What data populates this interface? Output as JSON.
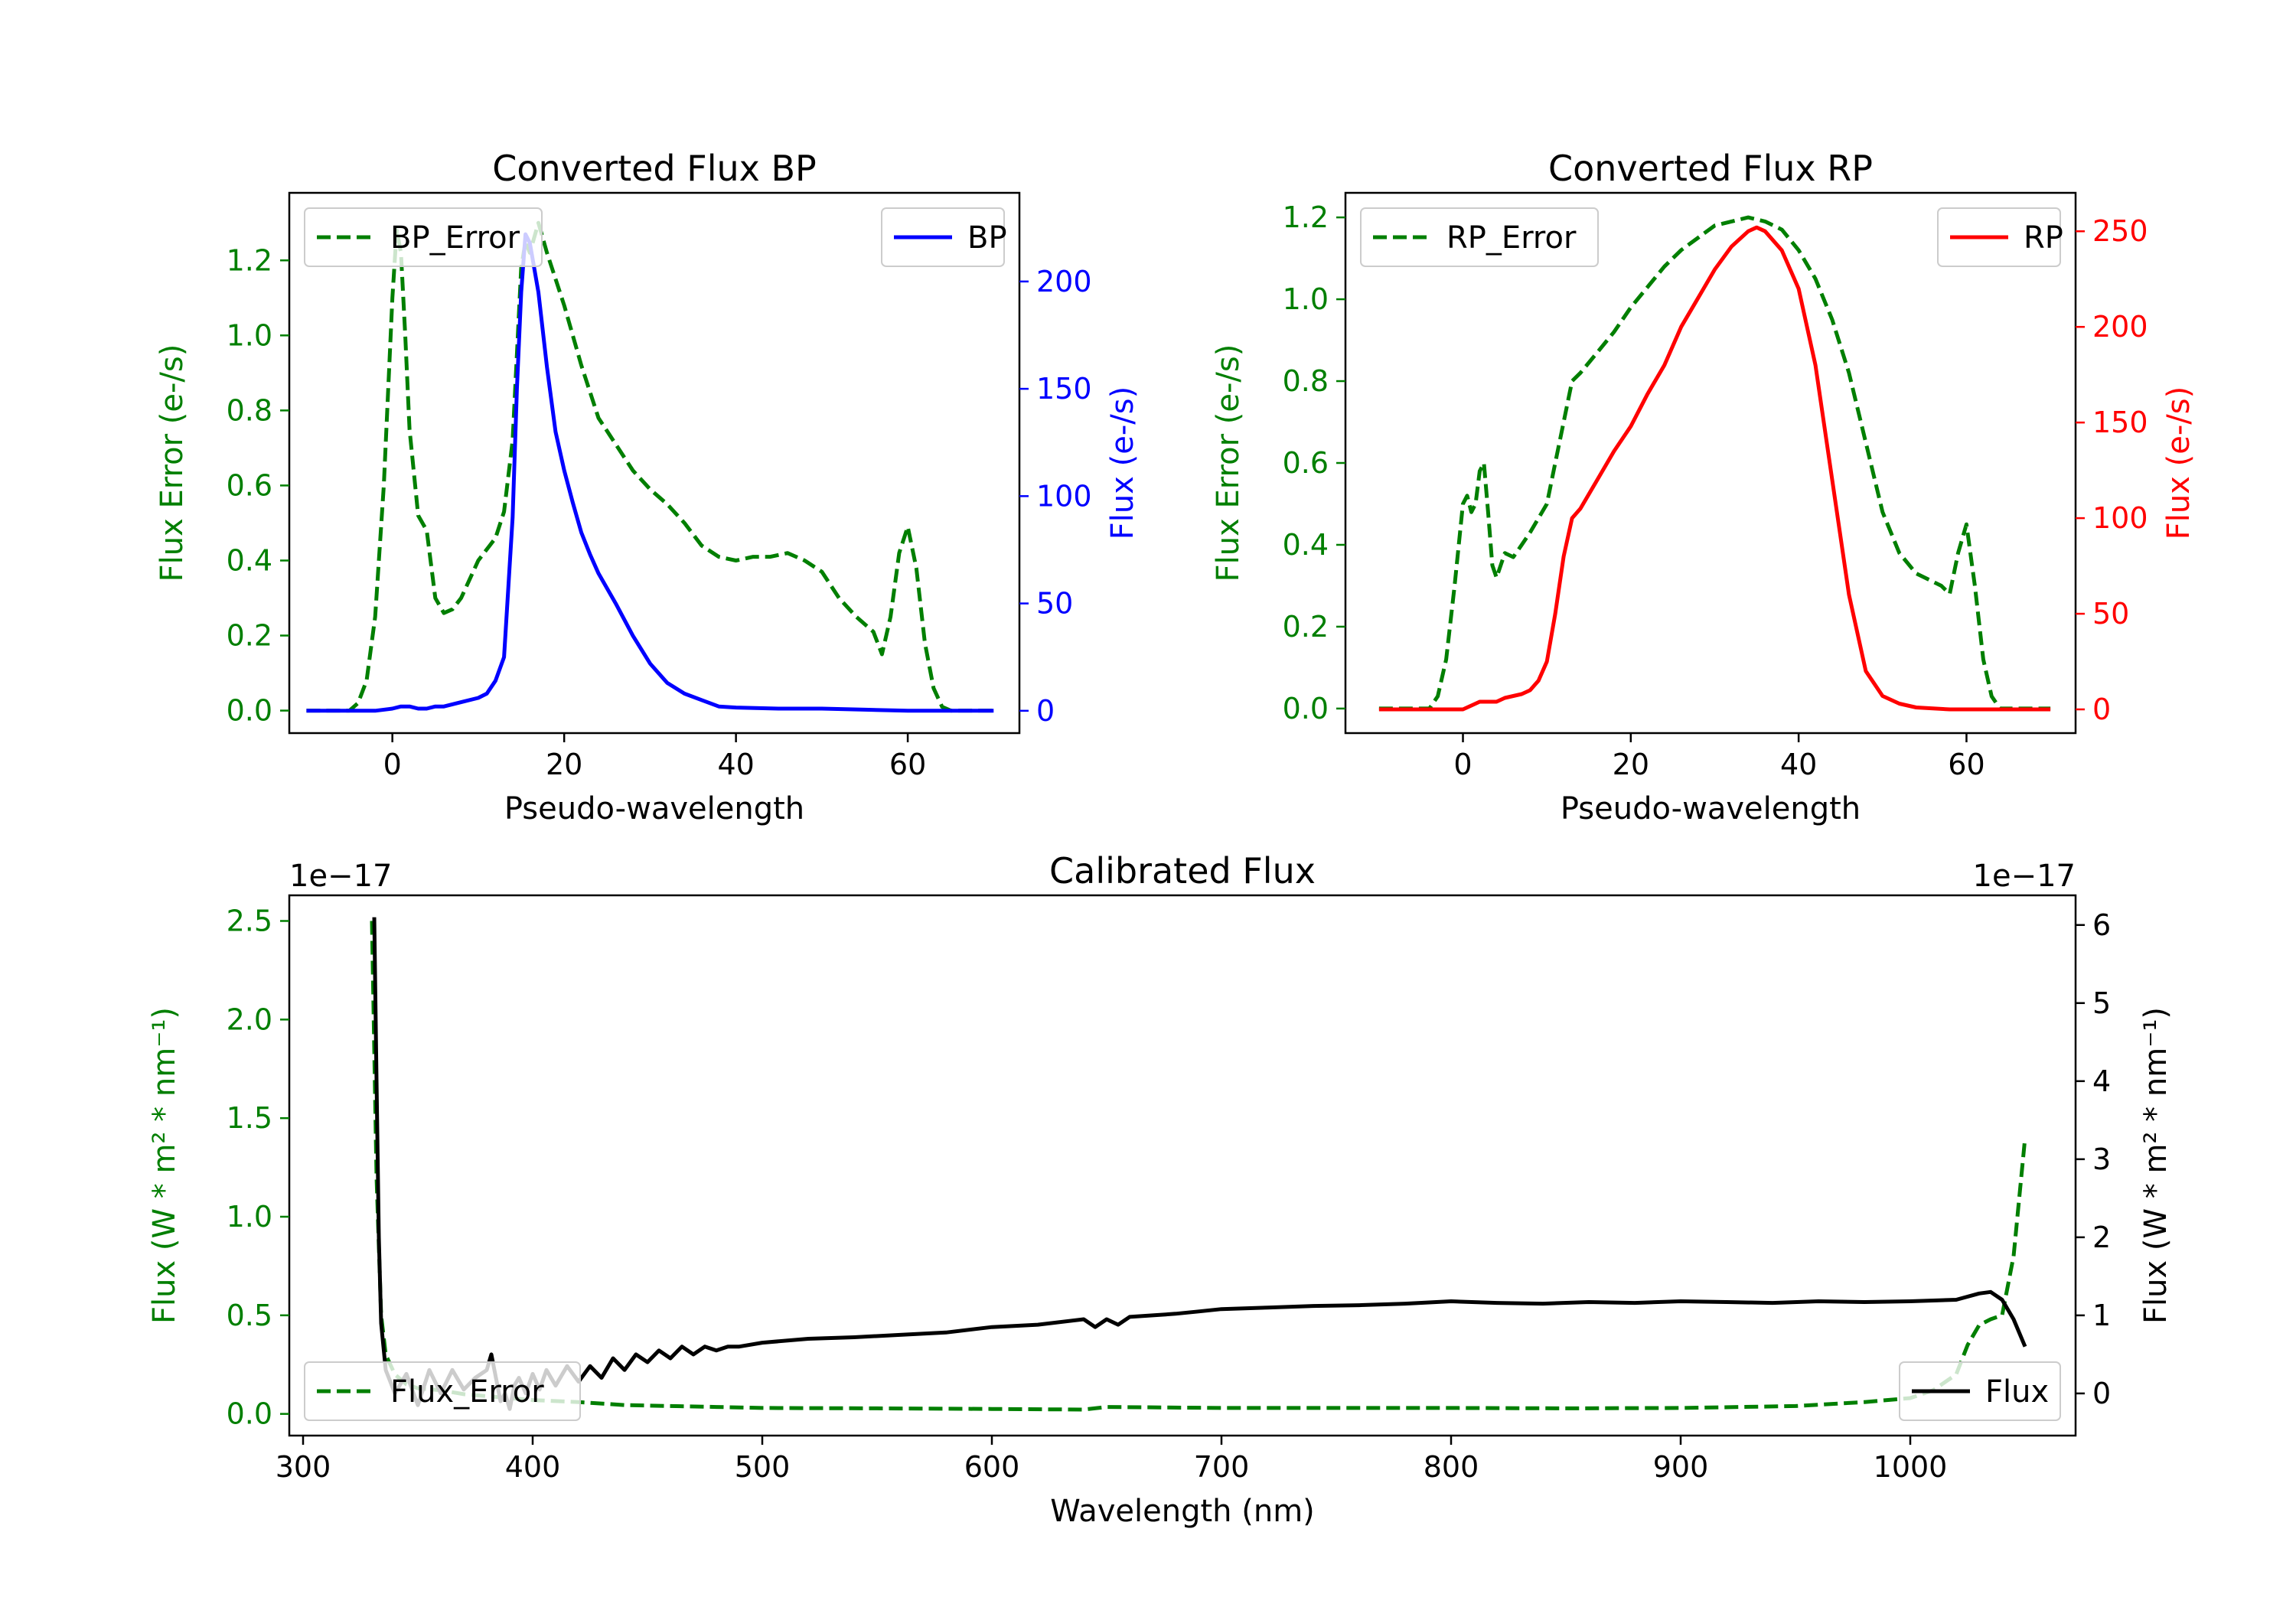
{
  "colors": {
    "green": "#007f00",
    "blue": "#0000ff",
    "red": "#ff0000",
    "black": "#000000"
  },
  "chart_data": [
    {
      "type": "line",
      "title": "Converted Flux BP",
      "xlabel": "Pseudo-wavelength",
      "ylabel": "Flux Error (e-/s)",
      "y2label": "Flux (e-/s)",
      "xlim": [
        -12,
        73
      ],
      "ylim": [
        -0.06,
        1.38
      ],
      "y2lim": [
        -10.4,
        241.3
      ],
      "xticks": [
        0,
        20,
        40,
        60
      ],
      "yticks": [
        0.0,
        0.2,
        0.4,
        0.6,
        0.8,
        1.0,
        1.2
      ],
      "y2ticks": [
        0,
        50,
        100,
        150,
        200
      ],
      "legend_left": "top-left",
      "legend_right": "top-right",
      "series": [
        {
          "name": "BP_Error",
          "axis": "left",
          "style": "dashed",
          "color": "#007f00",
          "x": [
            -10,
            -5,
            -4,
            -3,
            -2,
            -1,
            0,
            0.5,
            1,
            1.5,
            2,
            3,
            4,
            5,
            6,
            7,
            8,
            10,
            12,
            13,
            14,
            14.5,
            15,
            15.5,
            16,
            17,
            18,
            20,
            22,
            24,
            26,
            28,
            30,
            32,
            34,
            36,
            38,
            40,
            42,
            44,
            46,
            48,
            50,
            52,
            54,
            56,
            57,
            58,
            59,
            60,
            61,
            62,
            63,
            64,
            65,
            66,
            70
          ],
          "y": [
            0,
            0,
            0.02,
            0.08,
            0.25,
            0.6,
            1.1,
            1.28,
            1.22,
            1.0,
            0.75,
            0.52,
            0.48,
            0.3,
            0.26,
            0.27,
            0.3,
            0.4,
            0.46,
            0.53,
            0.72,
            0.95,
            1.18,
            1.25,
            1.22,
            1.3,
            1.22,
            1.08,
            0.92,
            0.78,
            0.71,
            0.64,
            0.59,
            0.55,
            0.5,
            0.44,
            0.41,
            0.4,
            0.41,
            0.41,
            0.42,
            0.4,
            0.37,
            0.3,
            0.25,
            0.21,
            0.15,
            0.25,
            0.42,
            0.49,
            0.38,
            0.18,
            0.06,
            0.01,
            0,
            0,
            0
          ]
        },
        {
          "name": "BP",
          "axis": "right",
          "style": "solid",
          "color": "#0000ff",
          "x": [
            -10,
            -2,
            0,
            1,
            2,
            3,
            4,
            5,
            6,
            8,
            10,
            11,
            12,
            13,
            14,
            14.5,
            15,
            15.5,
            16,
            17,
            18,
            19,
            20,
            21,
            22,
            23,
            24,
            26,
            28,
            30,
            32,
            34,
            36,
            38,
            40,
            45,
            50,
            55,
            60,
            65,
            70
          ],
          "y": [
            0,
            0,
            1,
            2,
            2,
            1,
            1,
            2,
            2,
            4,
            6,
            8,
            14,
            25,
            90,
            150,
            195,
            222,
            218,
            195,
            160,
            130,
            112,
            97,
            83,
            73,
            64,
            50,
            35,
            22,
            13,
            8,
            5,
            2,
            1.5,
            1,
            1,
            0.5,
            0,
            0,
            0
          ]
        }
      ]
    },
    {
      "type": "line",
      "title": "Converted Flux RP",
      "xlabel": "Pseudo-wavelength",
      "ylabel": "Flux Error (e-/s)",
      "y2label": "Flux (e-/s)",
      "xlim": [
        -14,
        73
      ],
      "ylim": [
        -0.06,
        1.26
      ],
      "y2lim": [
        -12.4,
        270.1
      ],
      "xticks": [
        0,
        20,
        40,
        60
      ],
      "yticks": [
        0.0,
        0.2,
        0.4,
        0.6,
        0.8,
        1.0,
        1.2
      ],
      "y2ticks": [
        0,
        50,
        100,
        150,
        200,
        250
      ],
      "legend_left": "top-left",
      "legend_right": "top-right",
      "series": [
        {
          "name": "RP_Error",
          "axis": "left",
          "style": "dashed",
          "color": "#007f00",
          "x": [
            -10,
            -4,
            -3,
            -2,
            -1,
            0,
            0.5,
            1,
            1.5,
            2,
            2.5,
            3,
            3.5,
            4,
            5,
            6,
            7,
            8,
            10,
            11,
            12,
            13,
            14,
            16,
            18,
            20,
            22,
            24,
            26,
            28,
            30,
            32,
            34,
            36,
            38,
            40,
            42,
            44,
            46,
            48,
            50,
            52,
            54,
            56,
            57,
            58,
            59,
            60,
            61,
            62,
            63,
            64,
            70
          ],
          "y": [
            0,
            0,
            0.03,
            0.12,
            0.3,
            0.5,
            0.52,
            0.48,
            0.5,
            0.58,
            0.6,
            0.48,
            0.35,
            0.32,
            0.38,
            0.37,
            0.4,
            0.43,
            0.5,
            0.6,
            0.7,
            0.8,
            0.82,
            0.87,
            0.92,
            0.98,
            1.03,
            1.08,
            1.12,
            1.15,
            1.18,
            1.19,
            1.2,
            1.19,
            1.17,
            1.12,
            1.05,
            0.95,
            0.82,
            0.65,
            0.48,
            0.38,
            0.33,
            0.31,
            0.3,
            0.28,
            0.38,
            0.45,
            0.3,
            0.12,
            0.03,
            0,
            0
          ]
        },
        {
          "name": "RP",
          "axis": "right",
          "style": "solid",
          "color": "#ff0000",
          "x": [
            -10,
            -2,
            0,
            1,
            2,
            3,
            4,
            5,
            6,
            7,
            8,
            9,
            10,
            11,
            12,
            13,
            14,
            16,
            18,
            20,
            22,
            24,
            26,
            28,
            30,
            32,
            34,
            35,
            36,
            38,
            40,
            42,
            44,
            46,
            48,
            50,
            52,
            54,
            56,
            58,
            60,
            62,
            65,
            70
          ],
          "y": [
            0,
            0,
            0,
            2,
            4,
            4,
            4,
            6,
            7,
            8,
            10,
            15,
            25,
            50,
            80,
            100,
            105,
            120,
            135,
            148,
            165,
            180,
            200,
            215,
            230,
            242,
            250,
            252,
            250,
            240,
            220,
            180,
            120,
            60,
            20,
            7,
            3,
            1,
            0.5,
            0,
            0,
            0,
            0,
            0
          ]
        }
      ]
    },
    {
      "type": "line",
      "title": "Calibrated Flux",
      "xlabel": "Wavelength (nm)",
      "ylabel": "Flux (W * m² * nm⁻¹)",
      "y2label": "Flux (W * m² * nm⁻¹)",
      "y_scale_label": "1e−17",
      "y2_scale_label": "1e−17",
      "xlim": [
        294,
        1072
      ],
      "ylim": [
        -0.11,
        2.63
      ],
      "y2lim": [
        -0.54,
        6.38
      ],
      "xticks": [
        300,
        400,
        500,
        600,
        700,
        800,
        900,
        1000
      ],
      "yticks": [
        0.0,
        0.5,
        1.0,
        1.5,
        2.0,
        2.5
      ],
      "y2ticks": [
        0,
        1,
        2,
        3,
        4,
        5,
        6
      ],
      "legend_left": "bottom-left",
      "legend_right": "bottom-right",
      "series": [
        {
          "name": "Flux_Error",
          "axis": "left",
          "style": "dashed",
          "color": "#007f00",
          "x": [
            330,
            332,
            334,
            336,
            340,
            345,
            350,
            360,
            370,
            380,
            390,
            400,
            420,
            440,
            460,
            480,
            500,
            550,
            600,
            640,
            650,
            700,
            750,
            800,
            850,
            900,
            950,
            980,
            1000,
            1010,
            1020,
            1025,
            1030,
            1035,
            1040,
            1045,
            1050
          ],
          "y": [
            2.5,
            1.2,
            0.5,
            0.3,
            0.2,
            0.15,
            0.13,
            0.12,
            0.1,
            0.09,
            0.08,
            0.07,
            0.06,
            0.045,
            0.04,
            0.035,
            0.03,
            0.028,
            0.025,
            0.022,
            0.035,
            0.03,
            0.03,
            0.03,
            0.028,
            0.03,
            0.04,
            0.06,
            0.08,
            0.12,
            0.2,
            0.35,
            0.45,
            0.48,
            0.5,
            0.8,
            1.4
          ]
        },
        {
          "name": "Flux",
          "axis": "right",
          "style": "solid",
          "color": "#000000",
          "x": [
            331,
            332,
            333,
            334,
            336,
            340,
            345,
            350,
            355,
            360,
            365,
            370,
            375,
            380,
            382,
            384,
            386,
            388,
            390,
            392,
            394,
            397,
            400,
            403,
            406,
            410,
            415,
            420,
            425,
            430,
            435,
            440,
            445,
            450,
            455,
            460,
            465,
            470,
            475,
            480,
            485,
            490,
            500,
            520,
            540,
            560,
            580,
            600,
            620,
            640,
            645,
            650,
            655,
            660,
            670,
            680,
            690,
            700,
            720,
            740,
            760,
            780,
            800,
            820,
            840,
            860,
            880,
            900,
            920,
            940,
            960,
            980,
            1000,
            1020,
            1030,
            1035,
            1040,
            1045,
            1050
          ],
          "y": [
            6.1,
            4.0,
            2.0,
            0.9,
            0.3,
            0.0,
            0.25,
            -0.15,
            0.3,
            0.0,
            0.3,
            0.05,
            0.2,
            0.3,
            0.5,
            0.2,
            -0.1,
            0.0,
            -0.2,
            0.1,
            0.2,
            0.0,
            0.25,
            0.05,
            0.3,
            0.1,
            0.35,
            0.15,
            0.35,
            0.2,
            0.45,
            0.3,
            0.5,
            0.4,
            0.55,
            0.45,
            0.6,
            0.5,
            0.6,
            0.55,
            0.6,
            0.6,
            0.65,
            0.7,
            0.72,
            0.75,
            0.78,
            0.85,
            0.88,
            0.95,
            0.85,
            0.95,
            0.88,
            0.98,
            1.0,
            1.02,
            1.05,
            1.08,
            1.1,
            1.12,
            1.13,
            1.15,
            1.18,
            1.16,
            1.15,
            1.17,
            1.16,
            1.18,
            1.17,
            1.16,
            1.18,
            1.17,
            1.18,
            1.2,
            1.28,
            1.3,
            1.2,
            0.95,
            0.6
          ]
        }
      ]
    }
  ]
}
